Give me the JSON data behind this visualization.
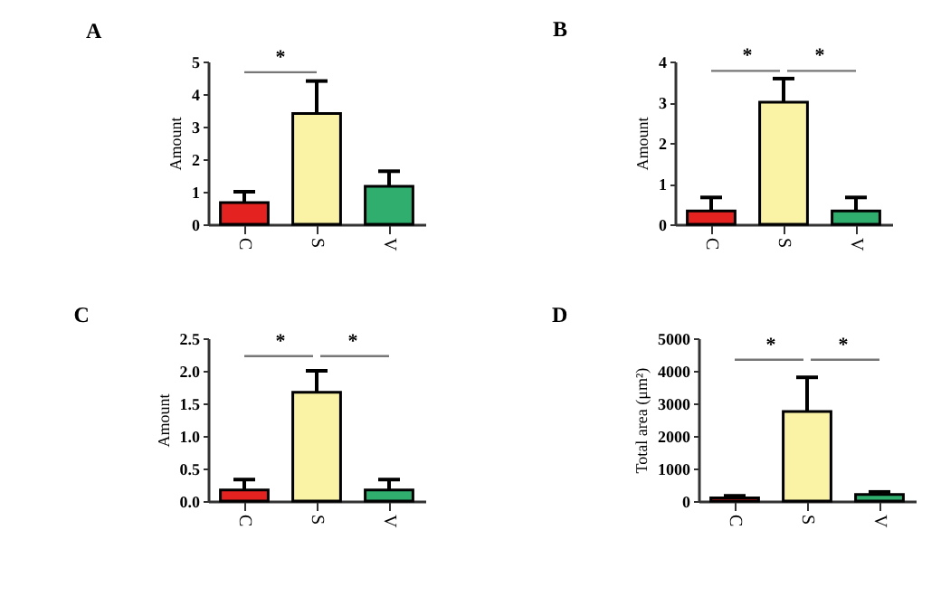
{
  "chart_data": [
    {
      "type": "bar",
      "title": "A",
      "ylabel": "Amount",
      "categories": [
        "C",
        "S",
        "V"
      ],
      "values": [
        0.67,
        3.4,
        1.17
      ],
      "colors": [
        "#e42320",
        "#faf3a6",
        "#2fae6e"
      ],
      "errors": [
        [
          0.67,
          1.0
        ],
        [
          3.4,
          4.4
        ],
        [
          1.17,
          1.63
        ]
      ],
      "ylim": [
        0,
        5
      ],
      "yticks": [
        0,
        1,
        2,
        3,
        4,
        5
      ],
      "annotations": [
        "*"
      ]
    },
    {
      "type": "bar",
      "title": "B",
      "ylabel": "Amount",
      "categories": [
        "C",
        "S",
        "V"
      ],
      "values": [
        0.33,
        3.0,
        0.33
      ],
      "colors": [
        "#e42320",
        "#faf3a6",
        "#2fae6e"
      ],
      "errors": [
        [
          0.33,
          0.66
        ],
        [
          3.0,
          3.58
        ],
        [
          0.33,
          0.66
        ]
      ],
      "ylim": [
        0,
        4
      ],
      "yticks": [
        0,
        1,
        2,
        3,
        4
      ],
      "annotations": [
        "*",
        "*"
      ]
    },
    {
      "type": "bar",
      "title": "C",
      "ylabel": "Amount",
      "categories": [
        "C",
        "S",
        "V"
      ],
      "values": [
        0.17,
        1.67,
        0.17
      ],
      "colors": [
        "#e42320",
        "#faf3a6",
        "#2fae6e"
      ],
      "errors": [
        [
          0.17,
          0.33
        ],
        [
          1.67,
          2.0
        ],
        [
          0.17,
          0.33
        ]
      ],
      "ylim": [
        0,
        2.5
      ],
      "yticks": [
        {
          "value": 0,
          "label": "0.0"
        },
        {
          "value": 0.5,
          "label": "0.5"
        },
        {
          "value": 1,
          "label": "1.0"
        },
        {
          "value": 1.5,
          "label": "1.5"
        },
        {
          "value": 2,
          "label": "2.0"
        },
        2.5
      ],
      "annotations": [
        "*",
        "*"
      ]
    },
    {
      "type": "bar",
      "title": "D",
      "ylabel": "Total area (μm²)",
      "categories": [
        "C",
        "S",
        "V"
      ],
      "values": [
        100,
        2750,
        200
      ],
      "colors": [
        "#e42320",
        "#faf3a6",
        "#2fae6e"
      ],
      "errors": [
        [
          100,
          160
        ],
        [
          2750,
          3800
        ],
        [
          200,
          280
        ]
      ],
      "ylim": [
        0,
        5000
      ],
      "yticks": [
        0,
        1000,
        2000,
        3000,
        4000,
        5000
      ],
      "annotations": [
        "*",
        "*"
      ]
    }
  ]
}
